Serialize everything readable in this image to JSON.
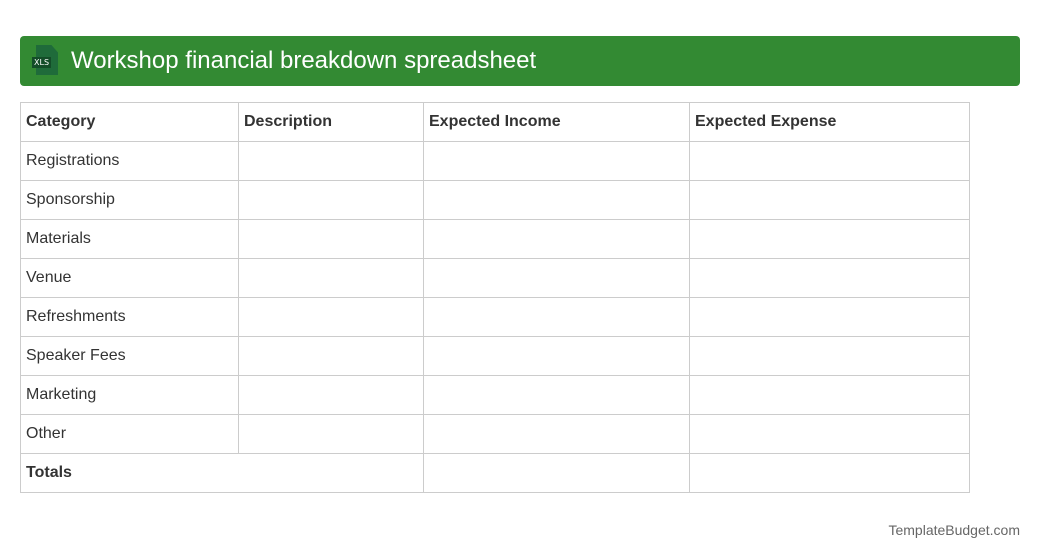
{
  "header": {
    "title": "Workshop financial breakdown spreadsheet",
    "icon": "xls-file-icon",
    "icon_label": "XLS"
  },
  "table": {
    "columns": [
      "Category",
      "Description",
      "Expected Income",
      "Expected Expense"
    ],
    "rows": [
      "Registrations",
      "Sponsorship",
      "Materials",
      "Venue",
      "Refreshments",
      "Speaker Fees",
      "Marketing",
      "Other"
    ],
    "totals_label": "Totals"
  },
  "footer": {
    "brand": "TemplateBudget.com"
  },
  "colors": {
    "header_bg": "#338a33"
  }
}
